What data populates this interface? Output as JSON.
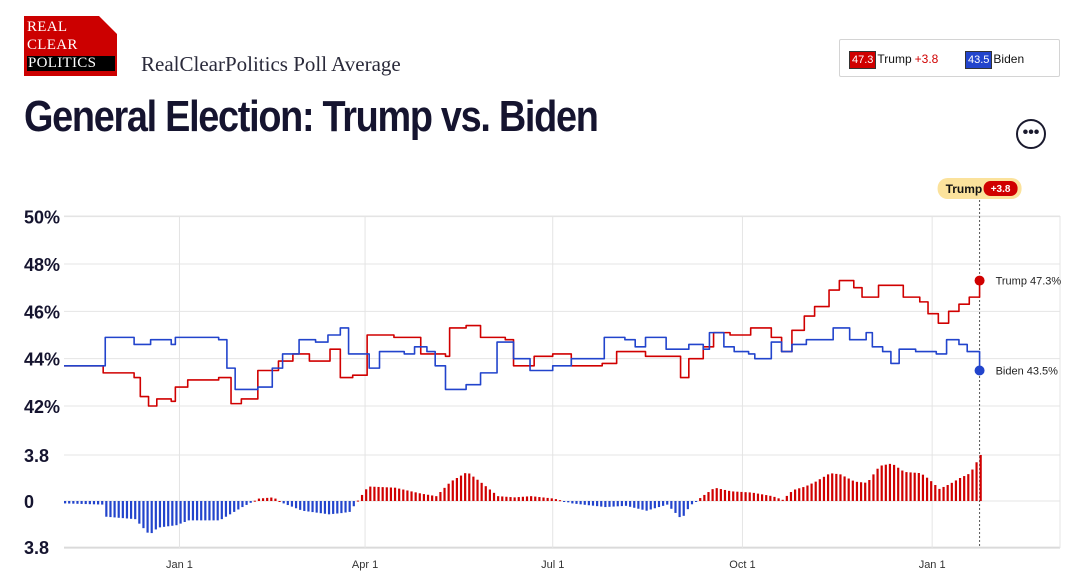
{
  "logo": {
    "line1": "REAL",
    "line2": "CLEAR",
    "line3": "POLITICS"
  },
  "header": {
    "subtitle": "RealClearPolitics Poll Average",
    "title": "General Election: Trump vs. Biden",
    "more_button": "•••"
  },
  "legend": {
    "trump": {
      "value": "47.3",
      "name": "Trump",
      "spread": "+3.8"
    },
    "biden": {
      "value": "43.5",
      "name": "Biden"
    }
  },
  "colors": {
    "trump": "#d00000",
    "biden": "#2244cc",
    "grid": "#e4e4e4",
    "leader_badge_bg": "#fbe29c"
  },
  "chart_data": {
    "type": "line",
    "x_ticks": [
      "Jan 1",
      "Apr 1",
      "Jul 1",
      "Oct 1",
      "Jan 1"
    ],
    "x_tick_dates": [
      "2023-01-01",
      "2023-04-01",
      "2023-07-01",
      "2023-10-01",
      "2024-01-01"
    ],
    "x_range": [
      "2022-11-06",
      "2024-03-03"
    ],
    "y_ticks": [
      "50%",
      "48%",
      "46%",
      "44%",
      "42%"
    ],
    "ylim": [
      41,
      50.5
    ],
    "spread_ticks": [
      "3.8",
      "0",
      "3.8"
    ],
    "spread_range": [
      -3.8,
      3.8
    ],
    "last_date": "2024-01-24",
    "leader_label": {
      "name": "Trump",
      "spread": "+3.8"
    },
    "end_labels": {
      "trump": "Trump 47.3%",
      "biden": "Biden 43.5%"
    },
    "series": [
      {
        "name": "Trump",
        "color": "#d00000",
        "points": [
          [
            "2022-11-06",
            43.7
          ],
          [
            "2022-11-20",
            43.7
          ],
          [
            "2022-11-25",
            43.4
          ],
          [
            "2022-12-10",
            43.2
          ],
          [
            "2022-12-13",
            42.4
          ],
          [
            "2022-12-17",
            42.0
          ],
          [
            "2022-12-21",
            42.3
          ],
          [
            "2022-12-28",
            42.2
          ],
          [
            "2022-12-30",
            42.8
          ],
          [
            "2023-01-05",
            43.1
          ],
          [
            "2023-01-20",
            43.2
          ],
          [
            "2023-01-26",
            42.1
          ],
          [
            "2023-01-31",
            42.3
          ],
          [
            "2023-02-08",
            43.5
          ],
          [
            "2023-02-18",
            43.9
          ],
          [
            "2023-02-25",
            44.2
          ],
          [
            "2023-03-05",
            43.9
          ],
          [
            "2023-03-15",
            44.4
          ],
          [
            "2023-03-20",
            43.2
          ],
          [
            "2023-03-26",
            43.3
          ],
          [
            "2023-04-02",
            45.0
          ],
          [
            "2023-04-15",
            44.9
          ],
          [
            "2023-04-28",
            44.2
          ],
          [
            "2023-05-10",
            44.1
          ],
          [
            "2023-05-12",
            45.3
          ],
          [
            "2023-05-20",
            45.4
          ],
          [
            "2023-05-27",
            44.9
          ],
          [
            "2023-06-08",
            44.8
          ],
          [
            "2023-06-12",
            43.7
          ],
          [
            "2023-06-20",
            43.7
          ],
          [
            "2023-06-22",
            44.1
          ],
          [
            "2023-07-01",
            44.2
          ],
          [
            "2023-07-10",
            43.7
          ],
          [
            "2023-07-25",
            43.8
          ],
          [
            "2023-08-01",
            44.3
          ],
          [
            "2023-08-15",
            44.1
          ],
          [
            "2023-08-25",
            44.1
          ],
          [
            "2023-09-01",
            43.2
          ],
          [
            "2023-09-05",
            44.0
          ],
          [
            "2023-09-12",
            44.5
          ],
          [
            "2023-09-17",
            45.1
          ],
          [
            "2023-09-25",
            45.0
          ],
          [
            "2023-10-05",
            45.3
          ],
          [
            "2023-10-15",
            44.9
          ],
          [
            "2023-10-20",
            44.3
          ],
          [
            "2023-10-25",
            45.2
          ],
          [
            "2023-10-31",
            45.8
          ],
          [
            "2023-11-05",
            46.2
          ],
          [
            "2023-11-12",
            46.9
          ],
          [
            "2023-11-17",
            47.3
          ],
          [
            "2023-11-24",
            47.0
          ],
          [
            "2023-11-28",
            46.6
          ],
          [
            "2023-12-02",
            46.6
          ],
          [
            "2023-12-06",
            47.1
          ],
          [
            "2023-12-12",
            47.1
          ],
          [
            "2023-12-18",
            46.6
          ],
          [
            "2023-12-26",
            46.4
          ],
          [
            "2023-12-30",
            45.9
          ],
          [
            "2024-01-04",
            45.5
          ],
          [
            "2024-01-09",
            46.0
          ],
          [
            "2024-01-14",
            46.3
          ],
          [
            "2024-01-19",
            46.6
          ],
          [
            "2024-01-24",
            47.3
          ]
        ]
      },
      {
        "name": "Biden",
        "color": "#2244cc",
        "points": [
          [
            "2022-11-06",
            43.7
          ],
          [
            "2022-11-25",
            43.7
          ],
          [
            "2022-11-26",
            44.9
          ],
          [
            "2022-12-08",
            44.9
          ],
          [
            "2022-12-10",
            44.6
          ],
          [
            "2022-12-18",
            44.8
          ],
          [
            "2022-12-28",
            44.6
          ],
          [
            "2022-12-30",
            44.9
          ],
          [
            "2023-01-20",
            44.8
          ],
          [
            "2023-01-24",
            43.6
          ],
          [
            "2023-01-28",
            42.7
          ],
          [
            "2023-02-08",
            42.8
          ],
          [
            "2023-02-15",
            43.6
          ],
          [
            "2023-02-20",
            44.2
          ],
          [
            "2023-02-28",
            44.8
          ],
          [
            "2023-03-08",
            44.7
          ],
          [
            "2023-03-14",
            45.0
          ],
          [
            "2023-03-20",
            45.3
          ],
          [
            "2023-03-24",
            44.2
          ],
          [
            "2023-04-03",
            43.6
          ],
          [
            "2023-04-08",
            44.3
          ],
          [
            "2023-04-20",
            44.2
          ],
          [
            "2023-04-25",
            44.5
          ],
          [
            "2023-05-01",
            44.3
          ],
          [
            "2023-05-05",
            43.7
          ],
          [
            "2023-05-10",
            42.7
          ],
          [
            "2023-05-20",
            42.9
          ],
          [
            "2023-05-27",
            43.4
          ],
          [
            "2023-06-04",
            44.7
          ],
          [
            "2023-06-12",
            44.0
          ],
          [
            "2023-06-20",
            43.5
          ],
          [
            "2023-06-28",
            43.5
          ],
          [
            "2023-07-01",
            43.7
          ],
          [
            "2023-07-10",
            44.0
          ],
          [
            "2023-07-20",
            44.0
          ],
          [
            "2023-07-26",
            44.9
          ],
          [
            "2023-08-05",
            44.8
          ],
          [
            "2023-08-10",
            44.5
          ],
          [
            "2023-08-15",
            44.9
          ],
          [
            "2023-08-25",
            44.4
          ],
          [
            "2023-09-05",
            44.6
          ],
          [
            "2023-09-12",
            44.4
          ],
          [
            "2023-09-15",
            45.1
          ],
          [
            "2023-09-22",
            44.5
          ],
          [
            "2023-09-27",
            44.3
          ],
          [
            "2023-10-04",
            44.2
          ],
          [
            "2023-10-07",
            44.0
          ],
          [
            "2023-10-15",
            44.7
          ],
          [
            "2023-10-20",
            44.3
          ],
          [
            "2023-10-25",
            44.6
          ],
          [
            "2023-11-01",
            44.8
          ],
          [
            "2023-11-10",
            44.8
          ],
          [
            "2023-11-14",
            45.3
          ],
          [
            "2023-11-22",
            44.8
          ],
          [
            "2023-11-30",
            45.1
          ],
          [
            "2023-12-03",
            44.5
          ],
          [
            "2023-12-08",
            44.3
          ],
          [
            "2023-12-12",
            43.8
          ],
          [
            "2023-12-16",
            44.4
          ],
          [
            "2023-12-24",
            44.3
          ],
          [
            "2024-01-03",
            44.2
          ],
          [
            "2024-01-08",
            44.8
          ],
          [
            "2024-01-14",
            44.6
          ],
          [
            "2024-01-18",
            44.3
          ],
          [
            "2024-01-24",
            43.5
          ]
        ]
      }
    ],
    "spread_series": [
      [
        "2022-11-06",
        -0.2
      ],
      [
        "2022-11-25",
        -0.3
      ],
      [
        "2022-11-26",
        -1.3
      ],
      [
        "2022-12-10",
        -1.5
      ],
      [
        "2022-12-17",
        -2.8
      ],
      [
        "2022-12-21",
        -2.2
      ],
      [
        "2022-12-30",
        -2.0
      ],
      [
        "2023-01-05",
        -1.6
      ],
      [
        "2023-01-20",
        -1.6
      ],
      [
        "2023-01-26",
        -1.0
      ],
      [
        "2023-01-31",
        -0.5
      ],
      [
        "2023-02-08",
        0.2
      ],
      [
        "2023-02-15",
        0.3
      ],
      [
        "2023-02-20",
        -0.2
      ],
      [
        "2023-03-01",
        -0.8
      ],
      [
        "2023-03-14",
        -1.1
      ],
      [
        "2023-03-20",
        -1.0
      ],
      [
        "2023-03-24",
        -0.9
      ],
      [
        "2023-04-02",
        1.2
      ],
      [
        "2023-04-15",
        1.1
      ],
      [
        "2023-04-28",
        0.6
      ],
      [
        "2023-05-05",
        0.4
      ],
      [
        "2023-05-12",
        1.6
      ],
      [
        "2023-05-20",
        2.4
      ],
      [
        "2023-05-27",
        1.5
      ],
      [
        "2023-06-04",
        0.4
      ],
      [
        "2023-06-12",
        0.3
      ],
      [
        "2023-06-20",
        0.4
      ],
      [
        "2023-07-01",
        0.2
      ],
      [
        "2023-07-10",
        -0.2
      ],
      [
        "2023-07-26",
        -0.5
      ],
      [
        "2023-08-05",
        -0.4
      ],
      [
        "2023-08-15",
        -0.8
      ],
      [
        "2023-08-25",
        -0.3
      ],
      [
        "2023-09-01",
        -1.5
      ],
      [
        "2023-09-05",
        -0.4
      ],
      [
        "2023-09-12",
        0.5
      ],
      [
        "2023-09-17",
        1.1
      ],
      [
        "2023-09-25",
        0.8
      ],
      [
        "2023-10-05",
        0.7
      ],
      [
        "2023-10-15",
        0.4
      ],
      [
        "2023-10-20",
        0.1
      ],
      [
        "2023-10-25",
        0.9
      ],
      [
        "2023-10-31",
        1.2
      ],
      [
        "2023-11-05",
        1.6
      ],
      [
        "2023-11-12",
        2.3
      ],
      [
        "2023-11-17",
        2.2
      ],
      [
        "2023-11-24",
        1.6
      ],
      [
        "2023-11-30",
        1.5
      ],
      [
        "2023-12-06",
        2.9
      ],
      [
        "2023-12-12",
        3.1
      ],
      [
        "2023-12-18",
        2.4
      ],
      [
        "2023-12-26",
        2.3
      ],
      [
        "2023-12-30",
        1.8
      ],
      [
        "2024-01-04",
        1.0
      ],
      [
        "2024-01-09",
        1.4
      ],
      [
        "2024-01-14",
        1.9
      ],
      [
        "2024-01-19",
        2.3
      ],
      [
        "2024-01-24",
        3.8
      ]
    ]
  }
}
